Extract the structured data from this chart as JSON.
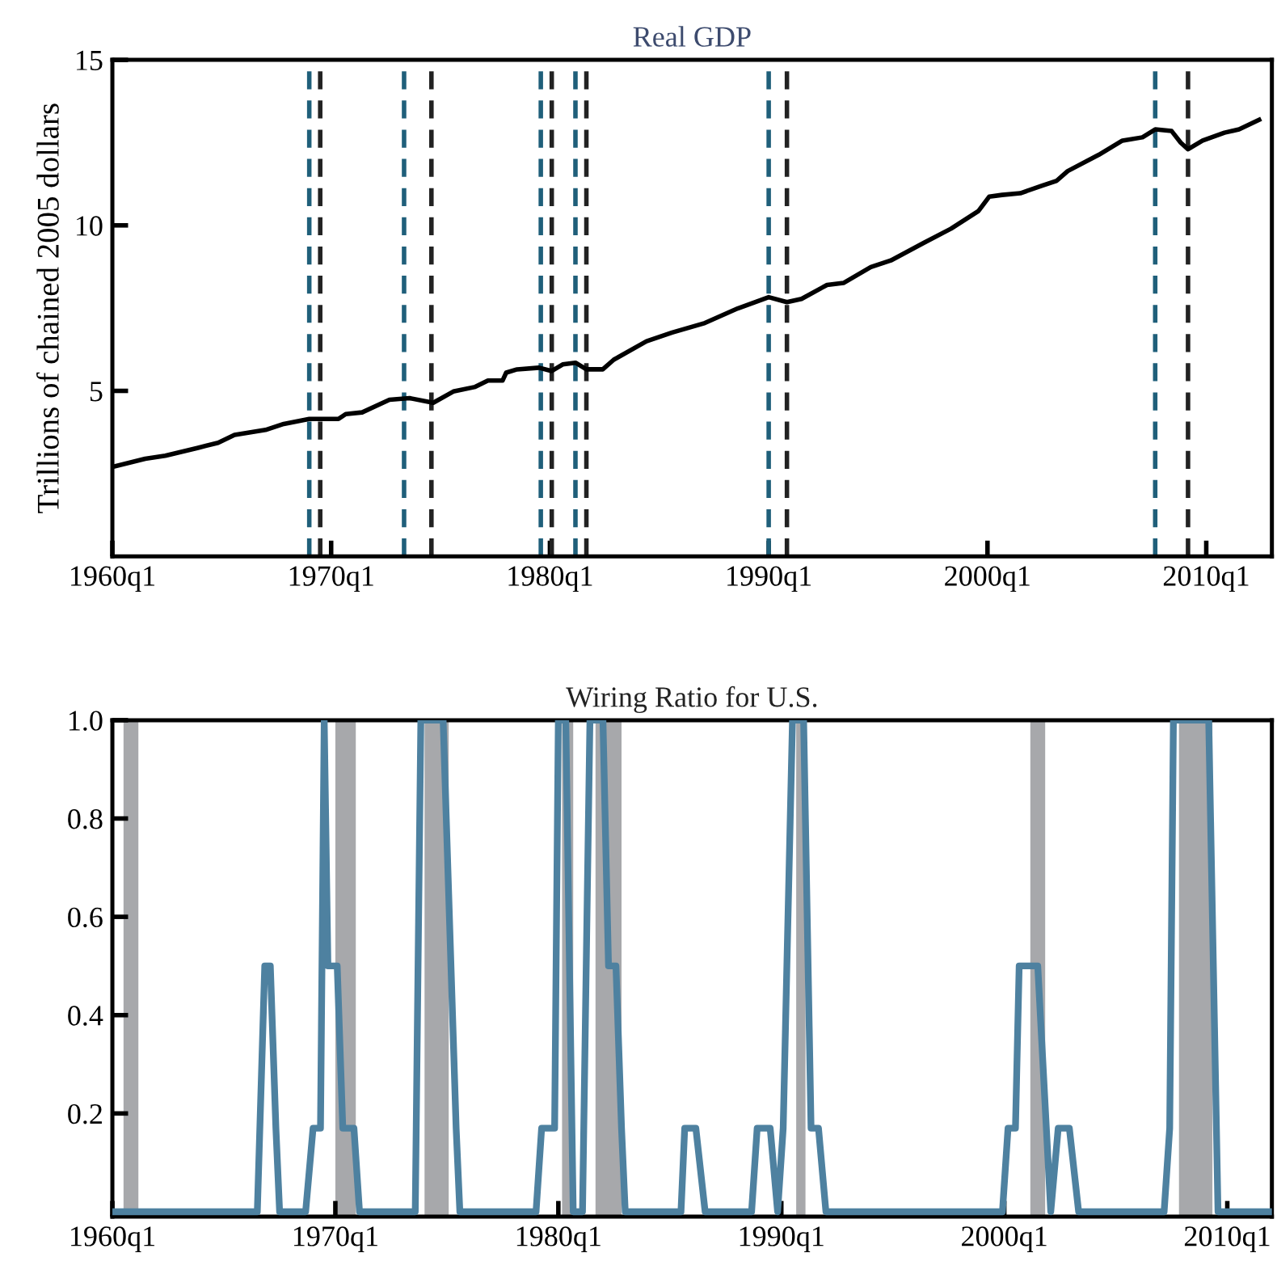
{
  "chart_data": [
    {
      "type": "line",
      "title": "Real GDP",
      "ylabel": "Trillions of chained 2005 dollars",
      "x": [
        "1960-01",
        "1961-07",
        "1962-06",
        "1963-12",
        "1964-11",
        "1965-08",
        "1967-01",
        "1967-11",
        "1969-01",
        "1970-05",
        "1970-09",
        "1971-06",
        "1972-09",
        "1973-08",
        "1974-09",
        "1975-08",
        "1976-08",
        "1977-03",
        "1977-11",
        "1978-01",
        "1978-07",
        "1979-07",
        "1980-02",
        "1980-08",
        "1981-03",
        "1981-09",
        "1982-06",
        "1982-12",
        "1984-06",
        "1985-08",
        "1987-02",
        "1988-08",
        "1990-01",
        "1990-11",
        "1991-07",
        "1992-09",
        "1993-06",
        "1994-09",
        "1995-08",
        "1997-02",
        "1998-05",
        "1999-08",
        "2000-02",
        "2000-09",
        "2001-07",
        "2002-07",
        "2003-03",
        "2003-09",
        "2005-02",
        "2006-03",
        "2007-02",
        "2007-09",
        "2008-06",
        "2008-11",
        "2009-03",
        "2009-11",
        "2010-11",
        "2011-07",
        "2012-06"
      ],
      "series": [
        {
          "color": "#000000",
          "values": [
            2.7,
            2.95,
            3.04,
            3.28,
            3.43,
            3.67,
            3.82,
            4.0,
            4.15,
            4.15,
            4.3,
            4.35,
            4.73,
            4.78,
            4.64,
            4.98,
            5.12,
            5.31,
            5.31,
            5.55,
            5.65,
            5.7,
            5.6,
            5.8,
            5.85,
            5.65,
            5.65,
            5.94,
            6.5,
            6.76,
            7.05,
            7.49,
            7.83,
            7.68,
            7.78,
            8.2,
            8.26,
            8.74,
            8.94,
            9.47,
            9.9,
            10.43,
            10.87,
            10.92,
            10.97,
            11.2,
            11.35,
            11.64,
            12.13,
            12.56,
            12.66,
            12.9,
            12.85,
            12.5,
            12.3,
            12.56,
            12.8,
            12.9,
            13.19
          ]
        }
      ],
      "xlim": [
        "1960-01",
        "2013-01"
      ],
      "ylim": [
        0,
        15
      ],
      "xticks": [
        {
          "value": "1960-01",
          "label": "1960q1"
        },
        {
          "value": "1970-01",
          "label": "1970q1"
        },
        {
          "value": "1980-01",
          "label": "1980q1"
        },
        {
          "value": "1990-01",
          "label": "1990q1"
        },
        {
          "value": "2000-01",
          "label": "2000q1"
        },
        {
          "value": "2010-01",
          "label": "2010q1"
        }
      ],
      "yticks": [
        5,
        10,
        15
      ],
      "ref_lines": [
        {
          "axis": "x",
          "value": "1969-01",
          "color": "#1f5f7a",
          "line_style": "dashed"
        },
        {
          "axis": "x",
          "value": "1969-07",
          "color": "#222222",
          "line_style": "dashed"
        },
        {
          "axis": "x",
          "value": "1973-05",
          "color": "#1f5f7a",
          "line_style": "dashed"
        },
        {
          "axis": "x",
          "value": "1974-08",
          "color": "#222222",
          "line_style": "dashed"
        },
        {
          "axis": "x",
          "value": "1979-08",
          "color": "#1f5f7a",
          "line_style": "dashed"
        },
        {
          "axis": "x",
          "value": "1980-02",
          "color": "#222222",
          "line_style": "dashed"
        },
        {
          "axis": "x",
          "value": "1981-03",
          "color": "#1f5f7a",
          "line_style": "dashed"
        },
        {
          "axis": "x",
          "value": "1981-09",
          "color": "#222222",
          "line_style": "dashed"
        },
        {
          "axis": "x",
          "value": "1990-01",
          "color": "#1f5f7a",
          "line_style": "dashed"
        },
        {
          "axis": "x",
          "value": "1990-11",
          "color": "#222222",
          "line_style": "dashed"
        },
        {
          "axis": "x",
          "value": "2007-09",
          "color": "#1f5f7a",
          "line_style": "dashed"
        },
        {
          "axis": "x",
          "value": "2009-03",
          "color": "#222222",
          "line_style": "dashed"
        }
      ]
    },
    {
      "type": "line",
      "title": "Wiring Ratio for U.S.",
      "x": [
        "1960-01",
        "1966-07",
        "1966-11",
        "1967-02",
        "1967-05",
        "1967-07",
        "1968-09",
        "1969-01",
        "1969-05",
        "1969-07",
        "1969-09",
        "1970-02",
        "1970-05",
        "1970-11",
        "1971-02",
        "1973-08",
        "1973-11",
        "1974-11",
        "1975-06",
        "1975-08",
        "1979-01",
        "1979-04",
        "1979-11",
        "1980-01",
        "1980-05",
        "1980-09",
        "1981-02",
        "1981-06",
        "1982-01",
        "1982-04",
        "1982-08",
        "1982-11",
        "1983-01",
        "1985-07",
        "1985-09",
        "1986-03",
        "1986-08",
        "1988-09",
        "1988-12",
        "1989-07",
        "1989-11",
        "1990-02",
        "1990-07",
        "1991-01",
        "1991-05",
        "1991-09",
        "1992-01",
        "1999-12",
        "2000-03",
        "2000-07",
        "2000-09",
        "2001-07",
        "2002-02",
        "2002-06",
        "2002-12",
        "2003-05",
        "2007-03",
        "2007-06",
        "2007-08",
        "2009-03",
        "2009-08",
        "2011-12"
      ],
      "series": [
        {
          "color": "#4e81a0",
          "values": [
            0,
            0,
            0.5,
            0.5,
            0.17,
            0,
            0,
            0.17,
            0.17,
            1,
            0.5,
            0.5,
            0.17,
            0.17,
            0,
            0,
            1,
            1,
            0.17,
            0,
            0,
            0.17,
            0.17,
            1,
            1,
            0,
            0,
            1,
            1,
            0.5,
            0.5,
            0.17,
            0,
            0,
            0.17,
            0.17,
            0,
            0,
            0.17,
            0.17,
            0,
            0.17,
            1,
            1,
            0.17,
            0.17,
            0,
            0,
            0.17,
            0.17,
            0.5,
            0.5,
            0,
            0.17,
            0.17,
            0,
            0,
            0.17,
            1,
            1,
            0,
            0
          ]
        }
      ],
      "xlim": [
        "1960-01",
        "2012-01"
      ],
      "ylim": [
        -0.01,
        1.0
      ],
      "xticks": [
        {
          "value": "1960-01",
          "label": "1960q1"
        },
        {
          "value": "1970-01",
          "label": "1970q1"
        },
        {
          "value": "1980-01",
          "label": "1980q1"
        },
        {
          "value": "1990-01",
          "label": "1990q1"
        },
        {
          "value": "2000-01",
          "label": "2000q1"
        },
        {
          "value": "2010-01",
          "label": "2010q1"
        }
      ],
      "yticks": [
        0.2,
        0.4,
        0.6,
        0.8,
        {
          "value": 1.0,
          "label": "1.0"
        }
      ],
      "bands": [
        {
          "axis": "x",
          "from": "1960-07",
          "to": "1961-03",
          "color": "#a7a8ab"
        },
        {
          "axis": "x",
          "from": "1970-01",
          "to": "1970-12",
          "color": "#a7a8ab"
        },
        {
          "axis": "x",
          "from": "1974-01",
          "to": "1975-02",
          "color": "#a7a8ab"
        },
        {
          "axis": "x",
          "from": "1980-03",
          "to": "1980-09",
          "color": "#a7a8ab"
        },
        {
          "axis": "x",
          "from": "1981-09",
          "to": "1982-11",
          "color": "#a7a8ab"
        },
        {
          "axis": "x",
          "from": "1990-09",
          "to": "1991-02",
          "color": "#a7a8ab"
        },
        {
          "axis": "x",
          "from": "2001-03",
          "to": "2001-11",
          "color": "#a7a8ab"
        },
        {
          "axis": "x",
          "from": "2007-11",
          "to": "2009-05",
          "color": "#a7a8ab"
        }
      ]
    }
  ]
}
